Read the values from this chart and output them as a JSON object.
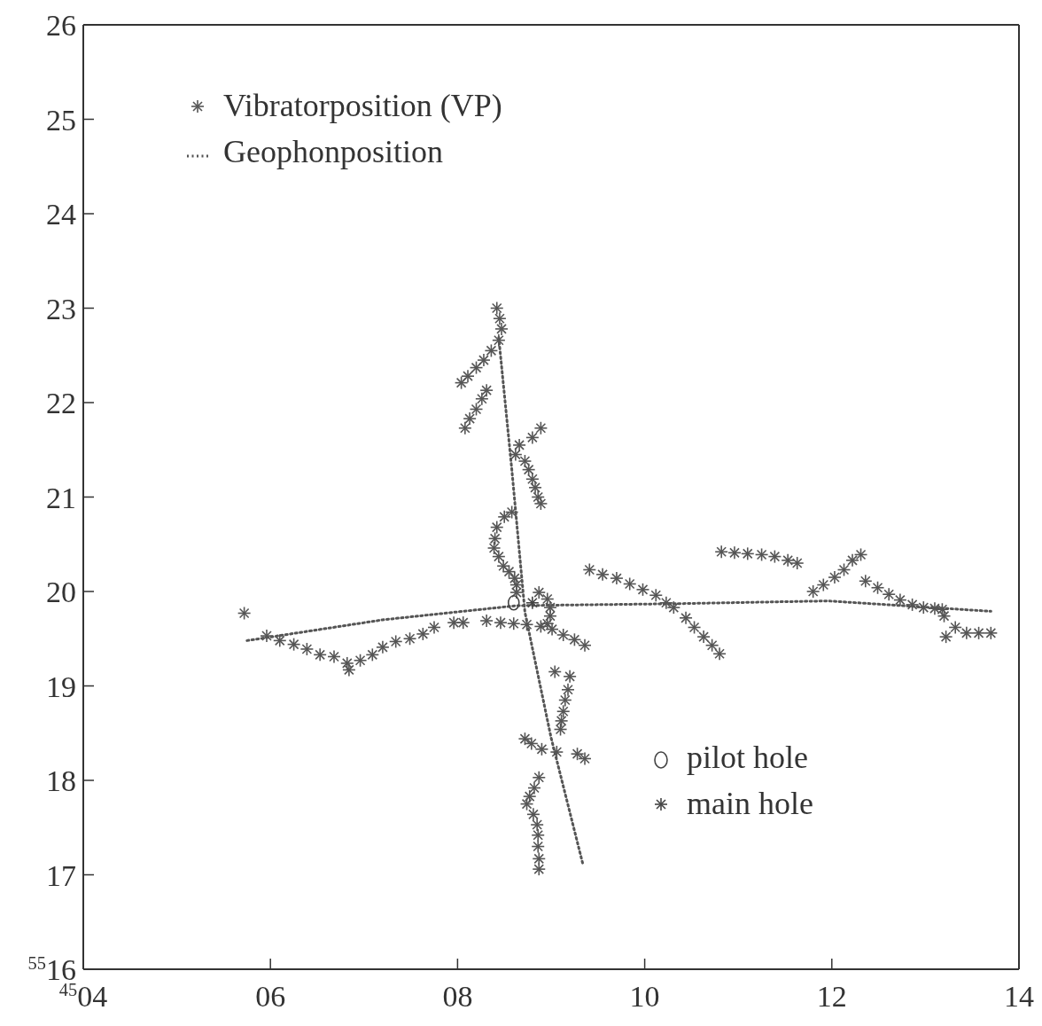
{
  "chart_data": {
    "type": "scatter",
    "xlim": [
      4,
      14
    ],
    "ylim": [
      16,
      26
    ],
    "xticks": [
      {
        "value": 4,
        "label": "$^{45}$04"
      },
      {
        "value": 6,
        "label": "06"
      },
      {
        "value": 8,
        "label": "08"
      },
      {
        "value": 10,
        "label": "10"
      },
      {
        "value": 12,
        "label": "12"
      },
      {
        "value": 14,
        "label": "14"
      }
    ],
    "yticks": [
      {
        "value": 16,
        "label": "$^{55}$16"
      },
      17,
      18,
      19,
      20,
      21,
      22,
      23,
      24,
      25,
      26
    ],
    "grid": false,
    "legend": "top left",
    "marker": "cross",
    "series": [
      {
        "name": "Vibratorposition (VP)",
        "color": "#555555",
        "x": [
          8.42,
          8.45,
          8.47,
          8.44,
          8.36,
          8.28,
          8.2,
          8.11,
          8.04,
          8.31,
          8.26,
          8.2,
          8.13,
          8.08,
          8.89,
          8.8,
          8.66,
          8.62,
          8.72,
          8.76,
          8.8,
          8.83,
          8.86,
          8.89,
          8.58,
          8.5,
          8.42,
          8.4,
          8.39,
          8.44,
          8.49,
          8.55,
          8.61,
          8.63,
          8.63,
          8.87,
          8.96,
          8.99,
          8.99,
          8.96,
          8.06,
          7.96,
          5.72,
          5.96,
          6.1,
          6.25,
          6.39,
          6.53,
          6.68,
          6.82,
          6.84,
          6.96,
          7.09,
          7.2,
          7.34,
          7.49,
          7.63,
          7.75,
          8.31,
          8.46,
          8.6,
          8.74,
          8.89,
          9.01,
          9.13,
          9.25,
          9.36,
          9.04,
          9.2,
          9.18,
          9.15,
          9.13,
          9.11,
          9.1,
          8.72,
          8.79,
          8.9,
          9.06,
          9.28,
          9.36,
          8.87,
          8.82,
          8.77,
          8.74,
          8.81,
          8.85,
          8.86,
          8.86,
          8.87,
          8.87,
          9.41,
          9.55,
          9.7,
          9.84,
          9.98,
          10.12,
          10.23,
          10.31,
          10.44,
          10.53,
          10.63,
          10.72,
          10.8,
          10.82,
          10.96,
          11.1,
          11.25,
          11.39,
          11.53,
          11.63,
          11.8,
          11.91,
          12.03,
          12.13,
          12.22,
          12.31,
          12.36,
          12.49,
          12.61,
          12.73,
          12.86,
          12.98,
          13.1,
          13.18,
          13.2,
          13.22,
          13.32,
          13.44,
          13.57,
          13.7
        ],
        "values": [
          23.0,
          22.89,
          22.78,
          22.66,
          22.55,
          22.45,
          22.37,
          22.28,
          22.21,
          22.13,
          22.04,
          21.93,
          21.83,
          21.73,
          21.73,
          21.63,
          21.55,
          21.45,
          21.38,
          21.29,
          21.19,
          21.1,
          21.0,
          20.93,
          20.84,
          20.79,
          20.68,
          20.56,
          20.46,
          20.37,
          20.27,
          20.21,
          20.14,
          20.07,
          19.99,
          19.99,
          19.92,
          19.83,
          19.74,
          19.66,
          19.67,
          19.67,
          19.77,
          19.53,
          19.48,
          19.44,
          19.39,
          19.33,
          19.31,
          19.24,
          19.17,
          19.27,
          19.33,
          19.41,
          19.47,
          19.5,
          19.55,
          19.62,
          19.69,
          19.67,
          19.66,
          19.65,
          19.63,
          19.6,
          19.54,
          19.49,
          19.43,
          19.15,
          19.1,
          18.96,
          18.85,
          18.73,
          18.63,
          18.54,
          18.44,
          18.39,
          18.33,
          18.3,
          18.28,
          18.23,
          18.03,
          17.92,
          17.83,
          17.75,
          17.64,
          17.53,
          17.42,
          17.3,
          17.17,
          17.06,
          20.23,
          20.18,
          20.14,
          20.08,
          20.02,
          19.96,
          19.88,
          19.83,
          19.72,
          19.62,
          19.52,
          19.43,
          19.34,
          20.42,
          20.41,
          20.4,
          20.39,
          20.37,
          20.33,
          20.3,
          20.0,
          20.07,
          20.15,
          20.23,
          20.33,
          20.39,
          20.11,
          20.04,
          19.97,
          19.91,
          19.86,
          19.83,
          19.82,
          19.81,
          19.74,
          19.52,
          19.62,
          19.56,
          19.56,
          19.56
        ]
      },
      {
        "name": "Geophonposition",
        "type": "line",
        "line_style": "dotted",
        "marker": "none",
        "color": "#555555",
        "x": [
          5.75,
          7.2,
          8.63,
          10.3,
          11.96,
          13.7
        ],
        "values": [
          19.48,
          19.7,
          19.85,
          19.87,
          19.9,
          19.79
        ]
      },
      {
        "type": "line",
        "line_style": "dotted",
        "marker": "none",
        "color": "#555555",
        "x": [
          8.44,
          8.58,
          8.72,
          9.0,
          9.34
        ],
        "values": [
          22.69,
          21.29,
          19.78,
          18.45,
          17.11
        ]
      },
      {
        "name": "pilot hole",
        "marker": "circle",
        "color": "#444444",
        "x": [
          8.6
        ],
        "values": [
          19.88
        ]
      },
      {
        "name": "main hole",
        "marker": "cross",
        "color": "#444444",
        "x": [
          8.8
        ],
        "values": [
          19.88
        ]
      }
    ]
  }
}
